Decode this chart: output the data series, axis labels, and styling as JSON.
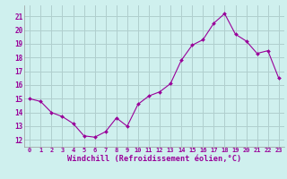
{
  "x": [
    0,
    1,
    2,
    3,
    4,
    5,
    6,
    7,
    8,
    9,
    10,
    11,
    12,
    13,
    14,
    15,
    16,
    17,
    18,
    19,
    20,
    21,
    22,
    23
  ],
  "y": [
    15.0,
    14.8,
    14.0,
    13.7,
    13.2,
    12.3,
    12.2,
    12.6,
    13.6,
    13.0,
    14.6,
    15.2,
    15.5,
    16.1,
    17.8,
    18.9,
    19.3,
    20.5,
    21.2,
    19.7,
    19.2,
    18.3,
    18.5,
    16.5
  ],
  "xticks": [
    0,
    1,
    2,
    3,
    4,
    5,
    6,
    7,
    8,
    9,
    10,
    11,
    12,
    13,
    14,
    15,
    16,
    17,
    18,
    19,
    20,
    21,
    22,
    23
  ],
  "yticks": [
    12,
    13,
    14,
    15,
    16,
    17,
    18,
    19,
    20,
    21
  ],
  "ylim": [
    11.5,
    21.8
  ],
  "xlim": [
    -0.5,
    23.5
  ],
  "xlabel": "Windchill (Refroidissement éolien,°C)",
  "line_color": "#990099",
  "marker_color": "#990099",
  "bg_color": "#cff0ee",
  "grid_color": "#b0cece",
  "label_color": "#990099",
  "tick_fontsize": 5.0,
  "xlabel_fontsize": 6.2
}
